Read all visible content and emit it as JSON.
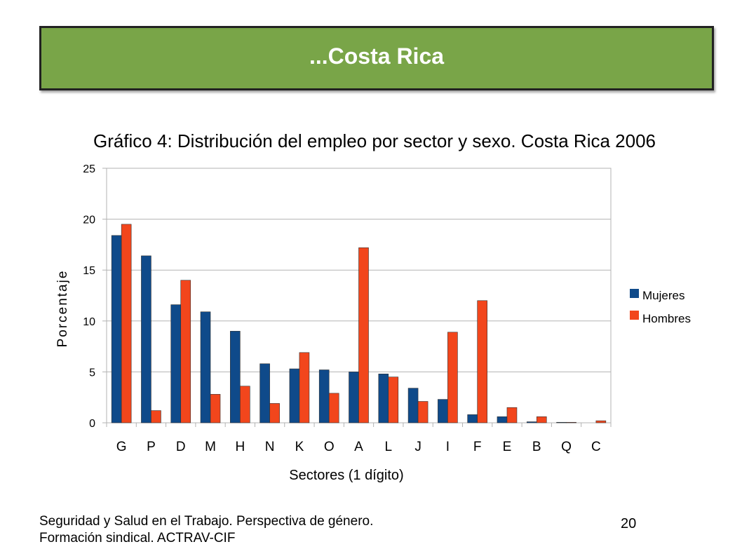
{
  "slide": {
    "title": "...Costa Rica",
    "footer_line1": "Seguridad y Salud en el Trabajo. Perspectiva de género.",
    "footer_line2": "Formación sindical. ACTRAV-CIF",
    "page_number": "20"
  },
  "colors": {
    "banner": "#79a548",
    "mujeres": "#0f4a8a",
    "hombres": "#f2461c"
  },
  "chart_data": {
    "type": "bar",
    "title": "Gráfico 4: Distribución del empleo por sector y sexo. Costa Rica 2006",
    "xlabel": "Sectores (1 dígito)",
    "ylabel": "Porcentaje",
    "ylim": [
      0,
      25
    ],
    "yticks": [
      0,
      5,
      10,
      15,
      20,
      25
    ],
    "grid": true,
    "legend": "right",
    "categories": [
      "G",
      "P",
      "D",
      "M",
      "H",
      "N",
      "K",
      "O",
      "A",
      "L",
      "J",
      "I",
      "F",
      "E",
      "B",
      "Q",
      "C"
    ],
    "series": [
      {
        "name": "Mujeres",
        "values": [
          18.4,
          16.4,
          11.6,
          10.9,
          9.0,
          5.8,
          5.3,
          5.2,
          5.0,
          4.8,
          3.4,
          2.3,
          0.8,
          0.6,
          0.1,
          0.05,
          0.0
        ]
      },
      {
        "name": "Hombres",
        "values": [
          19.5,
          1.2,
          14.0,
          2.8,
          3.6,
          1.9,
          6.9,
          2.9,
          17.2,
          4.5,
          2.1,
          8.9,
          12.0,
          1.5,
          0.6,
          0.05,
          0.2
        ]
      }
    ]
  }
}
